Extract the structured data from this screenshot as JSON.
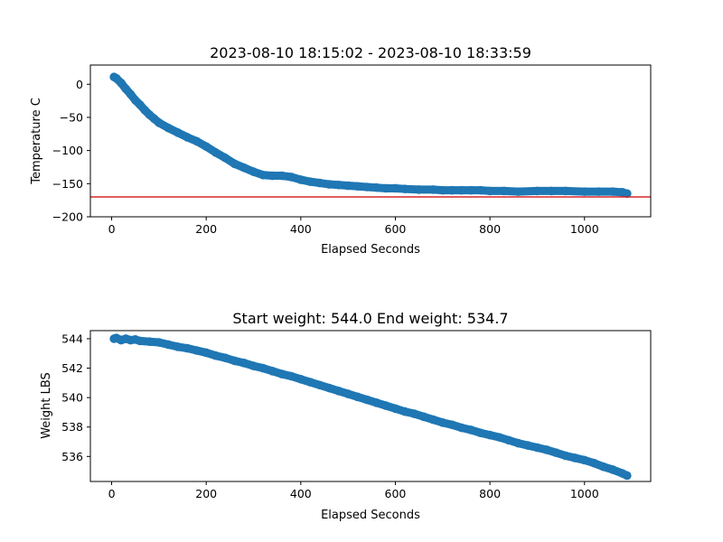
{
  "chart_data": [
    {
      "type": "scatter",
      "title": "2023-08-10 18:15:02 - 2023-08-10 18:33:59",
      "xlabel": "Elapsed Seconds",
      "ylabel": "Temperature C",
      "xlim": [
        -45,
        1140
      ],
      "ylim": [
        -200,
        29
      ],
      "xticks": [
        0,
        200,
        400,
        600,
        800,
        1000
      ],
      "yticks": [
        0,
        -50,
        -100,
        -150,
        -200
      ],
      "xtick_labels": [
        "0",
        "200",
        "400",
        "600",
        "800",
        "1000"
      ],
      "ytick_labels": [
        "0",
        "−50",
        "−100",
        "−150",
        "−200"
      ],
      "marker_color": "#1f77b4",
      "hline": {
        "y": -170,
        "color": "#d62728"
      },
      "grid": false,
      "series": [
        {
          "x": [
            5,
            10,
            20,
            30,
            40,
            50,
            60,
            70,
            80,
            90,
            100,
            120,
            140,
            160,
            180,
            200,
            220,
            240,
            260,
            280,
            300,
            320,
            340,
            360,
            380,
            400,
            420,
            440,
            460,
            480,
            500,
            520,
            540,
            560,
            580,
            600,
            620,
            650,
            680,
            700,
            720,
            740,
            760,
            780,
            800,
            830,
            860,
            900,
            930,
            960,
            1000,
            1030,
            1060,
            1080,
            1090
          ],
          "y": [
            11,
            9,
            2,
            -7,
            -15,
            -24,
            -31,
            -39,
            -46,
            -52,
            -58,
            -66,
            -73,
            -80,
            -86,
            -94,
            -103,
            -111,
            -120,
            -126,
            -132,
            -137,
            -138,
            -138,
            -140,
            -144,
            -147,
            -149,
            -151,
            -152,
            -153,
            -154,
            -155,
            -156,
            -157,
            -157,
            -158,
            -159,
            -159,
            -160,
            -160,
            -160,
            -160,
            -160,
            -161,
            -161,
            -162,
            -161,
            -161,
            -161,
            -162,
            -162,
            -162,
            -163,
            -165
          ]
        }
      ]
    },
    {
      "type": "scatter",
      "title": "Start weight: 544.0 End weight: 534.7",
      "xlabel": "Elapsed Seconds",
      "ylabel": "Weight LBS",
      "xlim": [
        -45,
        1140
      ],
      "ylim": [
        534.3,
        544.55
      ],
      "xticks": [
        0,
        200,
        400,
        600,
        800,
        1000
      ],
      "yticks": [
        536,
        538,
        540,
        542,
        544
      ],
      "xtick_labels": [
        "0",
        "200",
        "400",
        "600",
        "800",
        "1000"
      ],
      "ytick_labels": [
        "536",
        "538",
        "540",
        "542",
        "544"
      ],
      "marker_color": "#1f77b4",
      "grid": false,
      "series": [
        {
          "x": [
            5,
            10,
            20,
            30,
            40,
            50,
            60,
            80,
            100,
            120,
            140,
            160,
            180,
            200,
            220,
            240,
            260,
            280,
            300,
            320,
            340,
            360,
            380,
            400,
            420,
            440,
            460,
            480,
            500,
            520,
            540,
            560,
            580,
            600,
            620,
            640,
            660,
            680,
            700,
            720,
            740,
            760,
            780,
            800,
            820,
            840,
            860,
            880,
            900,
            920,
            940,
            960,
            980,
            1000,
            1020,
            1040,
            1060,
            1080,
            1090
          ],
          "y": [
            544.0,
            544.05,
            543.9,
            544.0,
            543.9,
            543.95,
            543.85,
            543.8,
            543.75,
            543.6,
            543.45,
            543.35,
            543.2,
            543.05,
            542.85,
            542.7,
            542.5,
            542.35,
            542.15,
            542.0,
            541.8,
            541.6,
            541.45,
            541.25,
            541.05,
            540.85,
            540.65,
            540.45,
            540.25,
            540.05,
            539.85,
            539.65,
            539.45,
            539.25,
            539.05,
            538.9,
            538.7,
            538.5,
            538.3,
            538.15,
            537.95,
            537.8,
            537.6,
            537.45,
            537.3,
            537.1,
            536.9,
            536.75,
            536.6,
            536.45,
            536.25,
            536.05,
            535.9,
            535.75,
            535.55,
            535.3,
            535.1,
            534.85,
            534.7
          ]
        }
      ]
    }
  ]
}
